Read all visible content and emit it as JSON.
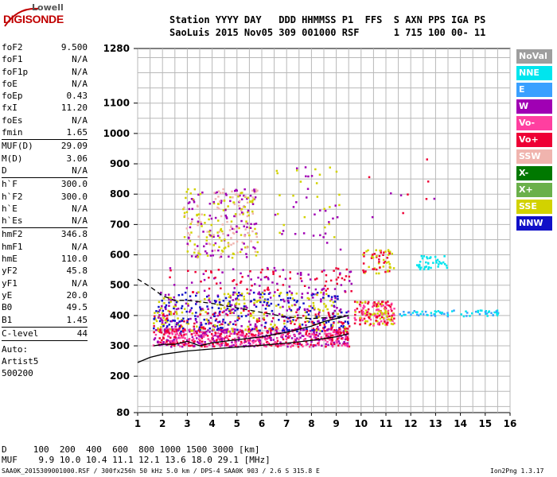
{
  "logo": {
    "line1": "Lowell",
    "line2": "DIGISONDE"
  },
  "header": {
    "line1": "Station YYYY DAY   DDD HHMMSS P1  FFS  S AXN PPS IGA PS",
    "line2": "SaoLuis 2015 Nov05 309 001000 RSF      1 715 100 00- 11"
  },
  "params": {
    "group1": [
      {
        "k": "foF2",
        "v": "9.500"
      },
      {
        "k": "foF1",
        "v": "N/A"
      },
      {
        "k": "foF1p",
        "v": "N/A"
      },
      {
        "k": "foE",
        "v": "N/A"
      },
      {
        "k": "foEp",
        "v": "0.43"
      },
      {
        "k": "fxI",
        "v": "11.20"
      },
      {
        "k": "foEs",
        "v": "N/A"
      },
      {
        "k": "fmin",
        "v": "1.65"
      }
    ],
    "group2": [
      {
        "k": "MUF(D)",
        "v": "29.09"
      },
      {
        "k": "M(D)",
        "v": "3.06"
      },
      {
        "k": "D",
        "v": "N/A"
      }
    ],
    "group3": [
      {
        "k": "h`F",
        "v": "300.0"
      },
      {
        "k": "h`F2",
        "v": "300.0"
      },
      {
        "k": "h`E",
        "v": "N/A"
      },
      {
        "k": "h`Es",
        "v": "N/A"
      }
    ],
    "group4": [
      {
        "k": "hmF2",
        "v": "346.8"
      },
      {
        "k": "hmF1",
        "v": "N/A"
      },
      {
        "k": "hmE",
        "v": "110.0"
      },
      {
        "k": "yF2",
        "v": "45.8"
      },
      {
        "k": "yF1",
        "v": "N/A"
      },
      {
        "k": "yE",
        "v": "20.0"
      },
      {
        "k": "B0",
        "v": "49.5"
      },
      {
        "k": "B1",
        "v": "1.45"
      }
    ],
    "group5": [
      {
        "k": "C-level",
        "v": "44"
      }
    ],
    "auto": [
      "Auto:",
      "Artist5",
      "500200"
    ]
  },
  "legend": [
    {
      "label": "NoVal",
      "bg": "#9e9e9e",
      "fg": "#ffffff"
    },
    {
      "label": "NNE",
      "bg": "#00e5ee",
      "fg": "#ffffff"
    },
    {
      "label": "E",
      "bg": "#3aa0ff",
      "fg": "#ffffff"
    },
    {
      "label": "W",
      "bg": "#a000b4",
      "fg": "#ffffff"
    },
    {
      "label": "Vo-",
      "bg": "#ff3fa0",
      "fg": "#ffffff"
    },
    {
      "label": "Vo+",
      "bg": "#ee0035",
      "fg": "#ffffff"
    },
    {
      "label": "SSW",
      "bg": "#f0b4ae",
      "fg": "#ffffff"
    },
    {
      "label": "X-",
      "bg": "#007800",
      "fg": "#ffffff"
    },
    {
      "label": "X+",
      "bg": "#6ab04a",
      "fg": "#ffffff"
    },
    {
      "label": "SSE",
      "bg": "#d2d200",
      "fg": "#ffffff"
    },
    {
      "label": "NNW",
      "bg": "#1010c8",
      "fg": "#ffffff"
    }
  ],
  "bottom": {
    "line1": "D     100  200  400  600  800 1000 1500 3000 [km]",
    "line2": "MUF    9.9 10.0 10.4 11.1 12.1 13.6 18.0 29.1 [MHz]"
  },
  "footer": {
    "left": "SAA0K_2015309001000.RSF / 300fx256h 50 kHz 5.0 km / DPS-4 SAA0K 903 / 2.6 S 315.8 E",
    "right": "Ion2Png 1.3.17"
  },
  "chart_data": {
    "type": "scatter",
    "title": "",
    "xlabel": "[MHz]",
    "ylabel": "[km]",
    "xlim": [
      1,
      16
    ],
    "ylim": [
      80,
      1280
    ],
    "x_ticks": [
      "1",
      "2",
      "3",
      "4",
      "5",
      "6",
      "7",
      "8",
      "9",
      "10",
      "11",
      "12",
      "13",
      "14",
      "15",
      "16"
    ],
    "y_ticks": [
      "80",
      "200",
      "300",
      "400",
      "500",
      "600",
      "700",
      "800",
      "900",
      "1000",
      "1100",
      "1280"
    ],
    "curves": [
      {
        "name": "virtual-height-trace",
        "style": "solid",
        "points": [
          [
            1.65,
            300
          ],
          [
            2,
            305
          ],
          [
            2.5,
            305
          ],
          [
            3,
            315
          ],
          [
            3.5,
            300
          ],
          [
            4,
            310
          ],
          [
            5,
            320
          ],
          [
            6,
            330
          ],
          [
            7,
            345
          ],
          [
            8,
            365
          ],
          [
            8.5,
            380
          ],
          [
            9,
            390
          ],
          [
            9.5,
            400
          ]
        ]
      },
      {
        "name": "lower-profile",
        "style": "solid",
        "points": [
          [
            1,
            245
          ],
          [
            1.5,
            262
          ],
          [
            2,
            272
          ],
          [
            3,
            283
          ],
          [
            4,
            290
          ],
          [
            5,
            296
          ],
          [
            6,
            302
          ],
          [
            7,
            309
          ],
          [
            8,
            318
          ],
          [
            9,
            330
          ],
          [
            9.5,
            340
          ]
        ]
      },
      {
        "name": "upper-profile",
        "style": "dashed",
        "points": [
          [
            1,
            520
          ],
          [
            1.5,
            495
          ],
          [
            2,
            465
          ],
          [
            2.5,
            450
          ],
          [
            3,
            450
          ],
          [
            4,
            440
          ],
          [
            5,
            425
          ],
          [
            6,
            410
          ],
          [
            7,
            395
          ],
          [
            8,
            390
          ],
          [
            9,
            395
          ],
          [
            9.5,
            400
          ]
        ]
      }
    ],
    "scatter_regions": [
      {
        "xr": [
          1.6,
          9.5
        ],
        "yr": [
          300,
          360
        ],
        "n": 700,
        "colors": [
          "#ee0035",
          "#ff3fa0",
          "#a000b4"
        ]
      },
      {
        "xr": [
          1.6,
          9.5
        ],
        "yr": [
          350,
          420
        ],
        "n": 400,
        "colors": [
          "#ee0035",
          "#d2d200",
          "#a000b4",
          "#1010c8"
        ]
      },
      {
        "xr": [
          1.8,
          9.2
        ],
        "yr": [
          420,
          480
        ],
        "n": 260,
        "colors": [
          "#a000b4",
          "#d2d200",
          "#1010c8"
        ]
      },
      {
        "xr": [
          2.2,
          9.6
        ],
        "yr": [
          480,
          560
        ],
        "n": 120,
        "colors": [
          "#a000b4",
          "#ee0035"
        ]
      },
      {
        "xr": [
          2.8,
          5.8
        ],
        "yr": [
          590,
          820
        ],
        "n": 280,
        "colors": [
          "#d2d200",
          "#a000b4",
          "#f0b4ae"
        ]
      },
      {
        "xr": [
          6.5,
          9.2
        ],
        "yr": [
          620,
          900
        ],
        "n": 50,
        "colors": [
          "#d2d200",
          "#a000b4"
        ]
      },
      {
        "xr": [
          9.7,
          11.3
        ],
        "yr": [
          370,
          450
        ],
        "n": 170,
        "colors": [
          "#ee0035",
          "#d2d200",
          "#ff3fa0"
        ]
      },
      {
        "xr": [
          10.0,
          11.3
        ],
        "yr": [
          540,
          620
        ],
        "n": 60,
        "colors": [
          "#d2d200",
          "#ee0035"
        ]
      },
      {
        "xr": [
          11.5,
          15.5
        ],
        "yr": [
          400,
          420
        ],
        "n": 70,
        "colors": [
          "#00e5ee",
          "#3aa0ff"
        ]
      },
      {
        "xr": [
          12.2,
          13.5
        ],
        "yr": [
          555,
          600
        ],
        "n": 40,
        "colors": [
          "#00e5ee"
        ]
      },
      {
        "xr": [
          10.2,
          13.5
        ],
        "yr": [
          700,
          950
        ],
        "n": 10,
        "colors": [
          "#ee0035",
          "#a000b4"
        ]
      }
    ]
  }
}
